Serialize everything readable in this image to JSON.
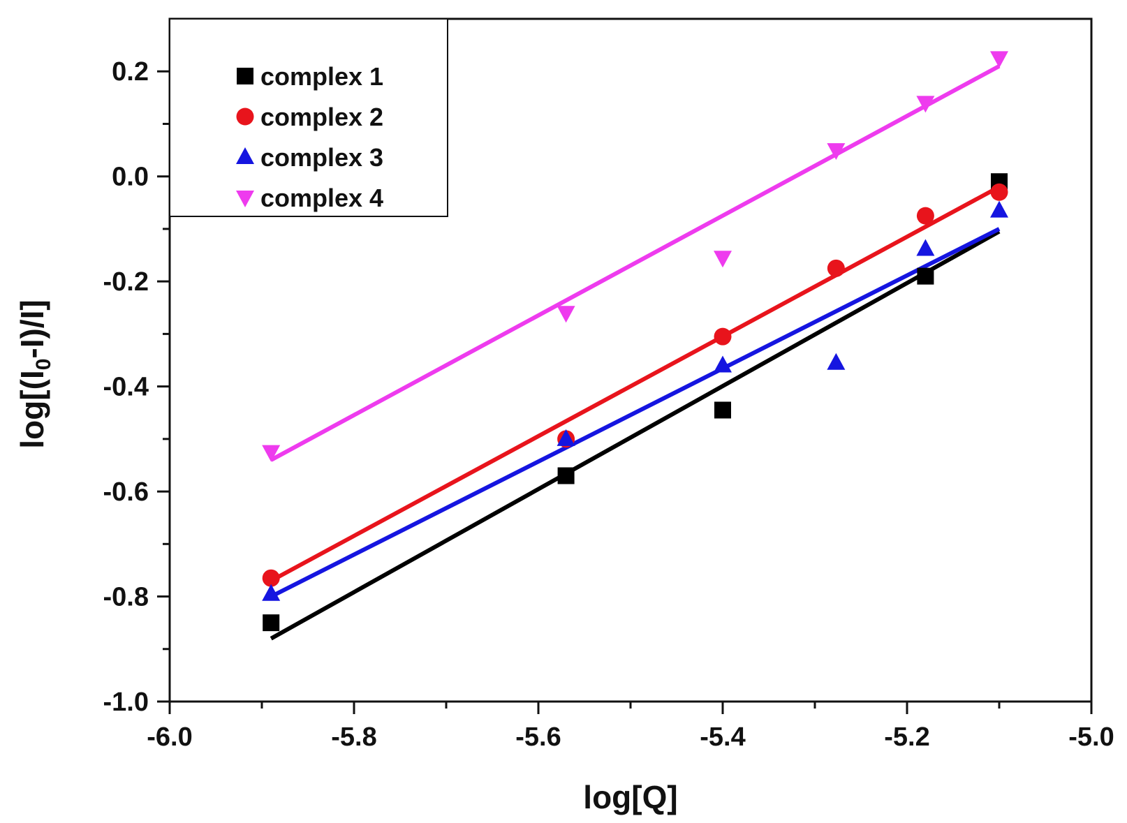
{
  "chart_data": {
    "type": "scatter",
    "title": "",
    "xlabel": "log[Q]",
    "ylabel": "log[(I0-I)/I]",
    "ylabel_parts": {
      "prefix": "log[(I",
      "subscript": "0",
      "suffix": "-I)/I]"
    },
    "xlim": [
      -6.0,
      -5.0
    ],
    "ylim": [
      -1.0,
      0.3
    ],
    "x_ticks": [
      -6.0,
      -5.8,
      -5.6,
      -5.4,
      -5.2,
      -5.0
    ],
    "x_tick_labels": [
      "-6.0",
      "-5.8",
      "-5.6",
      "-5.4",
      "-5.2",
      "-5.0"
    ],
    "y_ticks": [
      -1.0,
      -0.8,
      -0.6,
      -0.4,
      -0.2,
      0.0,
      0.2
    ],
    "y_tick_labels": [
      "-1.0",
      "-0.8",
      "-0.6",
      "-0.4",
      "-0.2",
      "0.0",
      "0.2"
    ],
    "grid": false,
    "legend_position": "top-left",
    "series": [
      {
        "name": "complex 1",
        "marker": "square",
        "color": "#000000",
        "x": [
          -5.89,
          -5.57,
          -5.4,
          -5.18,
          -5.1
        ],
        "y": [
          -0.85,
          -0.57,
          -0.445,
          -0.19,
          -0.01
        ],
        "fit_x": [
          -5.89,
          -5.1
        ],
        "fit_y": [
          -0.88,
          -0.105
        ]
      },
      {
        "name": "complex 2",
        "marker": "circle",
        "color": "#e8141c",
        "x": [
          -5.89,
          -5.57,
          -5.4,
          -5.277,
          -5.18,
          -5.1
        ],
        "y": [
          -0.765,
          -0.5,
          -0.305,
          -0.175,
          -0.075,
          -0.03
        ],
        "fit_x": [
          -5.89,
          -5.1
        ],
        "fit_y": [
          -0.77,
          -0.02
        ]
      },
      {
        "name": "complex 3",
        "marker": "triangle-up",
        "color": "#1515e0",
        "x": [
          -5.89,
          -5.57,
          -5.4,
          -5.277,
          -5.18,
          -5.1
        ],
        "y": [
          -0.795,
          -0.5,
          -0.36,
          -0.355,
          -0.138,
          -0.065
        ],
        "fit_x": [
          -5.89,
          -5.1
        ],
        "fit_y": [
          -0.8,
          -0.1
        ]
      },
      {
        "name": "complex 4",
        "marker": "triangle-down",
        "color": "#ee3bee",
        "x": [
          -5.89,
          -5.57,
          -5.4,
          -5.277,
          -5.18,
          -5.1
        ],
        "y": [
          -0.525,
          -0.26,
          -0.155,
          0.05,
          0.14,
          0.225
        ],
        "fit_x": [
          -5.89,
          -5.1
        ],
        "fit_y": [
          -0.54,
          0.21
        ]
      }
    ]
  }
}
